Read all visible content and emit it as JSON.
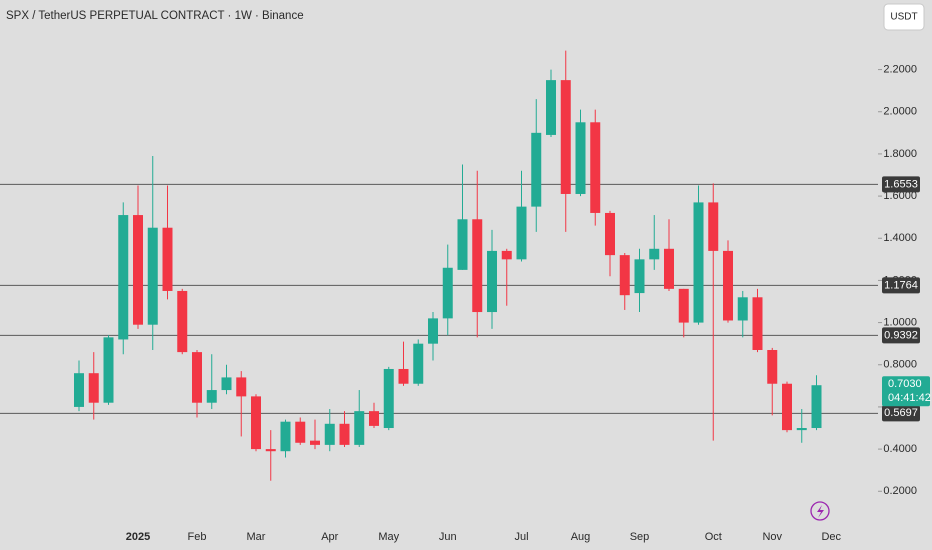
{
  "chart_data": {
    "type": "candlestick",
    "title": "SPX / TetherUS PERPETUAL CONTRACT · 1W · Binance",
    "currency_button": "USDT",
    "up_color": "#22ab94",
    "down_color": "#f23645",
    "categories": [
      null,
      null,
      null,
      null,
      "2025",
      null,
      null,
      null,
      "Feb",
      null,
      null,
      null,
      "Mar",
      null,
      null,
      null,
      null,
      "Apr",
      null,
      null,
      null,
      "May",
      null,
      null,
      null,
      "Jun",
      null,
      null,
      null,
      null,
      "Jul",
      null,
      null,
      null,
      "Aug",
      null,
      null,
      null,
      "Sep",
      null,
      null,
      null,
      null,
      "Oct",
      null,
      null,
      null,
      "Nov",
      null,
      null,
      null,
      "Dec"
    ],
    "open": [
      0.6,
      0.76,
      0.62,
      0.92,
      1.51,
      0.99,
      1.45,
      1.15,
      0.86,
      0.62,
      0.68,
      0.74,
      0.65,
      0.4,
      0.39,
      0.53,
      0.44,
      0.42,
      0.52,
      0.42,
      0.58,
      0.5,
      0.78,
      0.71,
      0.9,
      1.02,
      1.25,
      1.49,
      1.05,
      1.34,
      1.3,
      1.55,
      1.89,
      2.15,
      1.61,
      1.95,
      1.52,
      1.32,
      1.14,
      1.3,
      1.35,
      1.16,
      1.0,
      1.57,
      1.34,
      1.01,
      1.12,
      0.87,
      0.71,
      0.49,
      0.5,
      null
    ],
    "high": [
      0.82,
      0.86,
      0.94,
      1.57,
      1.65,
      1.79,
      1.65,
      1.16,
      0.87,
      0.85,
      0.8,
      0.77,
      0.66,
      0.49,
      0.54,
      0.55,
      0.54,
      0.59,
      0.58,
      0.68,
      0.62,
      0.79,
      0.91,
      0.92,
      1.05,
      1.37,
      1.75,
      1.72,
      1.44,
      1.35,
      1.72,
      2.06,
      2.2,
      2.29,
      2.01,
      2.01,
      1.53,
      1.33,
      1.35,
      1.51,
      1.49,
      1.16,
      1.65,
      1.66,
      1.39,
      1.15,
      1.16,
      0.88,
      0.72,
      0.59,
      0.75,
      null
    ],
    "low": [
      0.58,
      0.54,
      0.61,
      0.85,
      0.97,
      0.87,
      1.11,
      0.85,
      0.55,
      0.59,
      0.66,
      0.46,
      0.39,
      0.25,
      0.36,
      0.42,
      0.4,
      0.39,
      0.41,
      0.41,
      0.5,
      0.49,
      0.7,
      0.7,
      0.82,
      0.94,
      1.25,
      0.93,
      0.97,
      1.08,
      1.29,
      1.43,
      1.88,
      1.43,
      1.6,
      1.46,
      1.22,
      1.06,
      1.05,
      1.25,
      1.15,
      0.93,
      0.99,
      0.44,
      1.0,
      0.93,
      0.86,
      0.56,
      0.48,
      0.43,
      0.49,
      null
    ],
    "close": [
      0.76,
      0.62,
      0.93,
      1.51,
      0.99,
      1.45,
      1.15,
      0.86,
      0.62,
      0.68,
      0.74,
      0.65,
      0.4,
      0.39,
      0.53,
      0.43,
      0.42,
      0.52,
      0.42,
      0.58,
      0.51,
      0.78,
      0.71,
      0.9,
      1.02,
      1.26,
      1.49,
      1.05,
      1.34,
      1.3,
      1.55,
      1.9,
      2.15,
      1.61,
      1.95,
      1.52,
      1.32,
      1.13,
      1.3,
      1.35,
      1.16,
      1.0,
      1.57,
      1.34,
      1.01,
      1.12,
      0.87,
      0.71,
      0.49,
      0.5,
      0.703,
      null
    ],
    "ylim": [
      0.04,
      2.53
    ],
    "yticks": [
      {
        "value": 0.2,
        "label": "0.2000"
      },
      {
        "value": 0.4,
        "label": "0.4000"
      },
      {
        "value": 0.6,
        "label": "0.6000"
      },
      {
        "value": 0.8,
        "label": "0.8000"
      },
      {
        "value": 1.0,
        "label": "1.0000"
      },
      {
        "value": 1.2,
        "label": "1.2000"
      },
      {
        "value": 1.4,
        "label": "1.4000"
      },
      {
        "value": 1.6,
        "label": "1.6000"
      },
      {
        "value": 1.8,
        "label": "1.8000"
      },
      {
        "value": 2.0,
        "label": "2.0000"
      },
      {
        "value": 2.2,
        "label": "2.2000"
      }
    ],
    "levels": [
      1.6553,
      1.1764,
      0.9392,
      0.5697
    ],
    "last_price": {
      "value": 0.703,
      "label": "0.7030"
    },
    "countdown": "04:41:42"
  }
}
